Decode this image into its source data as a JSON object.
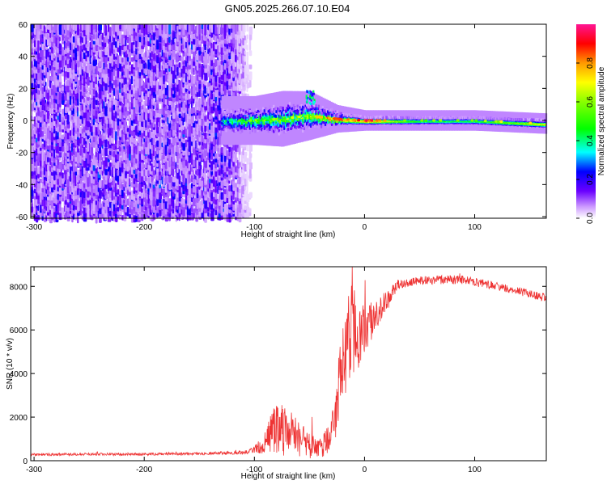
{
  "page_title": "GN05.2025.266.07.10.E04",
  "chart_data": [
    {
      "type": "heatmap",
      "name": "spectrogram",
      "xlabel": "Height of straight line (km)",
      "ylabel": "Frequency (Hz)",
      "xlim": [
        -303,
        165
      ],
      "ylim": [
        -61,
        60
      ],
      "xticks": [
        -300,
        -200,
        -100,
        0,
        100
      ],
      "yticks": [
        -60,
        -40,
        -20,
        0,
        20,
        40,
        60
      ],
      "xtick_labels": [
        "-300",
        "-200",
        "-100",
        "0",
        "100"
      ],
      "ytick_labels": [
        "-60",
        "-40",
        "-20",
        "0",
        "20",
        "40",
        "60"
      ],
      "colorbar": {
        "label": "Normalized spectral amplitude",
        "range": [
          0,
          1
        ],
        "ticks": [
          0.0,
          0.2,
          0.4,
          0.6,
          0.8
        ],
        "tick_labels": [
          "0.0",
          "0.2",
          "0.4",
          "0.6",
          "0.8"
        ]
      },
      "noise_region_x": [
        -303,
        -112
      ],
      "noise_amplitude_typical": [
        0.05,
        0.2
      ],
      "signal_band": [
        {
          "x": -125,
          "freq_center": 0,
          "freq_halfwidth": 6,
          "amplitude": 0.35
        },
        {
          "x": -100,
          "freq_center": 0,
          "freq_halfwidth": 6,
          "amplitude": 0.45
        },
        {
          "x": -75,
          "freq_center": 1,
          "freq_halfwidth": 7,
          "amplitude": 0.5
        },
        {
          "x": -50,
          "freq_center": 3,
          "freq_halfwidth": 6,
          "amplitude": 0.55
        },
        {
          "x": -25,
          "freq_center": 1,
          "freq_halfwidth": 3,
          "amplitude": 0.75
        },
        {
          "x": 0,
          "freq_center": 0,
          "freq_halfwidth": 2,
          "amplitude": 0.8
        },
        {
          "x": 50,
          "freq_center": 0,
          "freq_halfwidth": 2,
          "amplitude": 0.45
        },
        {
          "x": 100,
          "freq_center": 0,
          "freq_halfwidth": 2,
          "amplitude": 0.45
        },
        {
          "x": 165,
          "freq_center": -2,
          "freq_halfwidth": 2,
          "amplitude": 0.7
        }
      ],
      "burst": {
        "x": -50,
        "freq_center": 15,
        "freq_halfwidth": 4,
        "amplitude": 0.3
      }
    },
    {
      "type": "line",
      "name": "snr",
      "xlabel": "Height of straight line (km)",
      "ylabel": "SNR (10 * v/v)",
      "xlim": [
        -303,
        165
      ],
      "ylim": [
        0,
        8900
      ],
      "xticks": [
        -300,
        -200,
        -100,
        0,
        100
      ],
      "yticks": [
        0,
        2000,
        4000,
        6000,
        8000
      ],
      "xtick_labels": [
        "-300",
        "-200",
        "-100",
        "0",
        "100"
      ],
      "ytick_labels": [
        "0",
        "2000",
        "4000",
        "6000",
        "8000"
      ],
      "color": "#ee3333",
      "series": [
        {
          "name": "SNR",
          "x": [
            -303,
            -250,
            -200,
            -150,
            -110,
            -100,
            -90,
            -80,
            -70,
            -60,
            -50,
            -40,
            -30,
            -25,
            -20,
            -15,
            -10,
            -5,
            0,
            10,
            20,
            30,
            50,
            70,
            90,
            110,
            130,
            150,
            165
          ],
          "y": [
            280,
            300,
            300,
            320,
            380,
            500,
            900,
            1500,
            1300,
            1000,
            700,
            600,
            1200,
            2500,
            4500,
            5500,
            6200,
            5800,
            6000,
            6700,
            7300,
            8100,
            8250,
            8300,
            8300,
            8100,
            7900,
            7650,
            7450
          ],
          "noise_amplitude": [
            60,
            60,
            60,
            60,
            80,
            150,
            600,
            1200,
            1100,
            900,
            600,
            500,
            900,
            1500,
            2000,
            2200,
            2200,
            1500,
            1200,
            700,
            500,
            200,
            200,
            200,
            200,
            200,
            180,
            180,
            180
          ]
        }
      ]
    }
  ]
}
